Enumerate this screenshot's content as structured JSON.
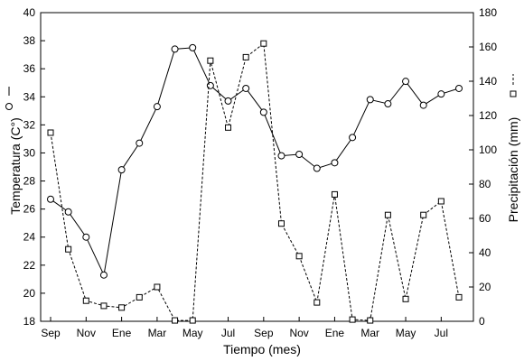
{
  "chart_data": {
    "type": "line",
    "xlabel": "Tiempo (mes)",
    "x_tick_labels": [
      "Sep",
      "Nov",
      "Ene",
      "Mar",
      "May",
      "Jul",
      "Sep",
      "Nov",
      "Ene",
      "Mar",
      "May",
      "Jul"
    ],
    "y_left": {
      "label": "Temperatura (C°)",
      "lim": [
        18,
        40
      ],
      "ticks": [
        18,
        20,
        22,
        24,
        26,
        28,
        30,
        32,
        34,
        36,
        38,
        40
      ]
    },
    "y_right": {
      "label": "Precipitación (mm)",
      "lim": [
        0,
        180
      ],
      "ticks": [
        0,
        20,
        40,
        60,
        80,
        100,
        120,
        140,
        160,
        180
      ]
    },
    "series": [
      {
        "axis": "left",
        "marker": "circle",
        "line": "solid",
        "values": [
          26.7,
          25.8,
          24.0,
          21.3,
          28.8,
          30.7,
          33.3,
          37.4,
          37.5,
          34.8,
          33.7,
          34.6,
          32.9,
          29.8,
          29.9,
          28.9,
          29.3,
          31.1,
          33.8,
          33.5,
          35.1,
          33.4,
          34.2,
          34.6
        ]
      },
      {
        "axis": "right",
        "marker": "square",
        "line": "dashed",
        "values": [
          110,
          42,
          12,
          9,
          8,
          14,
          20,
          0.5,
          0.5,
          152,
          113,
          154,
          162,
          57,
          38,
          11,
          74,
          1,
          0.5,
          62,
          13,
          62,
          70,
          14
        ]
      }
    ]
  }
}
